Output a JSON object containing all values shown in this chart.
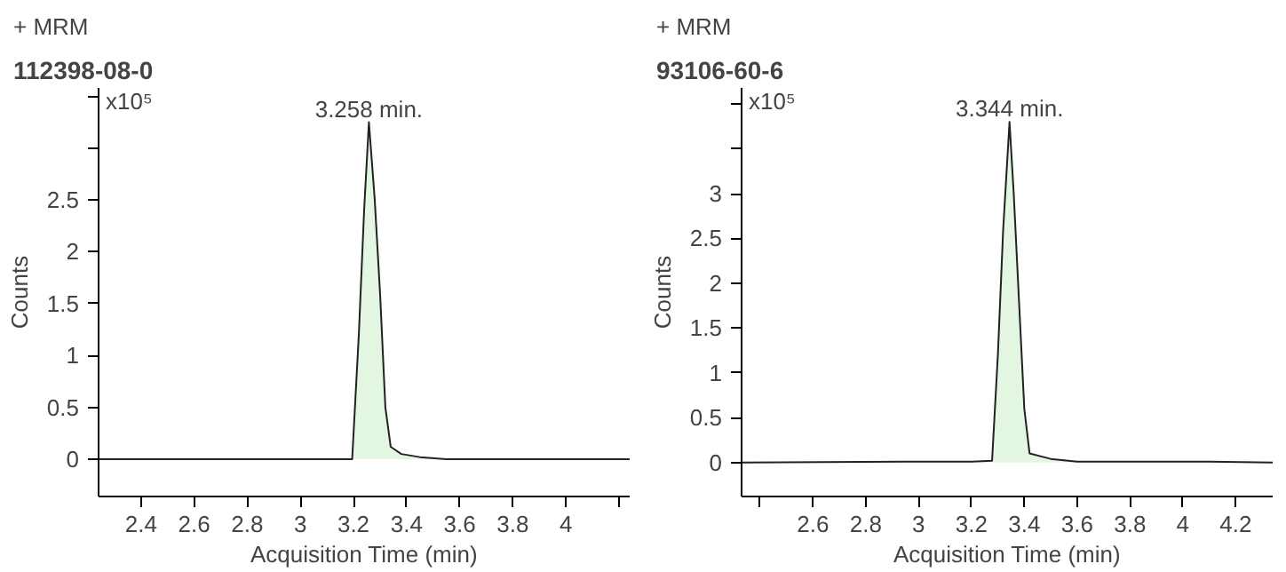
{
  "chart_data": [
    {
      "type": "area",
      "title": "112398-08-0",
      "ylabel": "Counts",
      "xlabel": "Acquisition Time (min)",
      "annotations": [
        "+ MRM",
        "x10⁵",
        {
          "text": "3.258 min.",
          "x": 3.258,
          "y": 3.25
        }
      ],
      "x": [
        2.24,
        3.0,
        3.195,
        3.22,
        3.24,
        3.258,
        3.28,
        3.3,
        3.32,
        3.34,
        3.38,
        3.45,
        3.55,
        4.24
      ],
      "series": [
        {
          "color": "#e2f6e2",
          "values": [
            0,
            0,
            0,
            1.2,
            2.4,
            3.25,
            2.5,
            1.6,
            0.5,
            0.12,
            0.05,
            0.02,
            0,
            0
          ]
        }
      ],
      "xlim": [
        2.24,
        4.24
      ],
      "xticks": [
        2.4,
        2.6,
        2.8,
        3,
        3.2,
        3.4,
        3.6,
        3.8,
        4,
        {
          "value": 4.2,
          "label": null
        }
      ],
      "ylim": [
        -0.36,
        3.58
      ],
      "yticks": [
        0,
        0.5,
        1,
        1.5,
        2,
        2.5,
        {
          "value": 3,
          "label": null
        },
        {
          "value": 3.5,
          "label": null
        }
      ],
      "grid": false
    },
    {
      "type": "area",
      "title": "93106-60-6",
      "ylabel": "Counts",
      "xlabel": "Acquisition Time (min)",
      "annotations": [
        "+ MRM",
        "x10⁵",
        {
          "text": "3.344 min.",
          "x": 3.344,
          "y": 3.8
        }
      ],
      "x": [
        2.33,
        3.0,
        3.2,
        3.278,
        3.3,
        3.32,
        3.344,
        3.36,
        3.38,
        3.4,
        3.42,
        3.5,
        3.6,
        4.1,
        4.34
      ],
      "series": [
        {
          "color": "#e2f6e2",
          "values": [
            0,
            0.01,
            0.01,
            0.02,
            1.2,
            2.6,
            3.8,
            3.0,
            1.8,
            0.6,
            0.1,
            0.04,
            0.01,
            0.01,
            0
          ]
        }
      ],
      "xlim": [
        2.33,
        4.34
      ],
      "xticks": [
        {
          "value": 2.4,
          "label": null
        },
        2.6,
        2.8,
        3,
        3.2,
        3.4,
        3.6,
        3.8,
        4,
        4.2
      ],
      "ylim": [
        -0.38,
        4.18
      ],
      "yticks": [
        0,
        0.5,
        1,
        1.5,
        2,
        2.5,
        3,
        {
          "value": 3.5,
          "label": null
        },
        {
          "value": 4,
          "label": null
        }
      ],
      "grid": false
    }
  ]
}
